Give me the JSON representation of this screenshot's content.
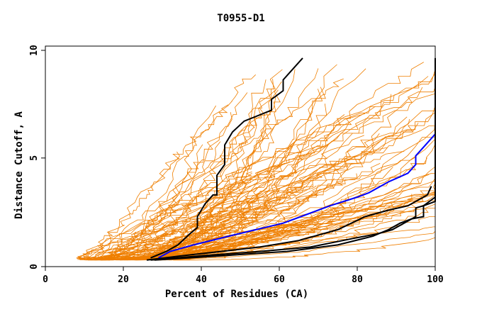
{
  "chart_data": {
    "type": "line",
    "title": "T0955-D1",
    "xlabel": "Percent of Residues (CA)",
    "ylabel": "Distance Cutoff, A",
    "xlim": [
      0,
      100
    ],
    "ylim": [
      0,
      10
    ],
    "x_ticks": [
      "0",
      "20",
      "40",
      "60",
      "80",
      "100"
    ],
    "y_ticks": [
      "0",
      "5",
      "10"
    ],
    "grid": false,
    "legend": "none",
    "colors": {
      "background_models": "#ef7f00",
      "highlight_black": "#000000",
      "highlight_blue": "#0000ff"
    },
    "background_model_count": 110,
    "series": [
      {
        "color": "#000000",
        "points": [
          [
            27,
            0.4
          ],
          [
            31,
            0.7
          ],
          [
            34,
            1.0
          ],
          [
            37,
            1.5
          ],
          [
            39,
            1.8
          ],
          [
            39,
            2.3
          ],
          [
            41,
            2.9
          ],
          [
            43,
            3.3
          ],
          [
            44,
            3.3
          ],
          [
            44,
            4.2
          ],
          [
            46,
            4.7
          ],
          [
            46,
            5.6
          ],
          [
            48,
            6.2
          ],
          [
            51,
            6.7
          ],
          [
            58,
            7.2
          ],
          [
            58,
            7.7
          ],
          [
            61,
            8.1
          ],
          [
            61,
            8.6
          ],
          [
            63,
            9.0
          ],
          [
            66,
            9.6
          ]
        ]
      },
      {
        "color": "#0000ff",
        "points": [
          [
            29,
            0.4
          ],
          [
            32,
            0.7
          ],
          [
            38,
            1.0
          ],
          [
            47,
            1.4
          ],
          [
            54,
            1.7
          ],
          [
            61,
            2.0
          ],
          [
            67,
            2.4
          ],
          [
            73,
            2.8
          ],
          [
            80,
            3.2
          ],
          [
            83,
            3.4
          ],
          [
            88,
            3.9
          ],
          [
            93,
            4.3
          ],
          [
            95,
            4.7
          ],
          [
            95,
            5.1
          ],
          [
            98,
            5.7
          ],
          [
            100,
            6.1
          ]
        ]
      },
      {
        "color": "#000000",
        "points": [
          [
            26,
            0.3
          ],
          [
            35,
            0.5
          ],
          [
            45,
            0.7
          ],
          [
            55,
            0.9
          ],
          [
            65,
            1.2
          ],
          [
            75,
            1.7
          ],
          [
            82,
            2.3
          ],
          [
            88,
            2.6
          ],
          [
            93,
            2.8
          ],
          [
            96,
            3.1
          ],
          [
            98,
            3.3
          ],
          [
            99,
            3.7
          ]
        ]
      },
      {
        "color": "#000000",
        "points": [
          [
            27,
            0.3
          ],
          [
            40,
            0.5
          ],
          [
            55,
            0.7
          ],
          [
            68,
            0.9
          ],
          [
            79,
            1.3
          ],
          [
            85,
            1.5
          ],
          [
            89,
            1.7
          ],
          [
            92,
            2.0
          ],
          [
            95,
            2.3
          ],
          [
            95,
            2.7
          ],
          [
            97,
            2.8
          ],
          [
            100,
            3.2
          ]
        ]
      },
      {
        "color": "#000000",
        "points": [
          [
            28,
            0.3
          ],
          [
            45,
            0.5
          ],
          [
            62,
            0.7
          ],
          [
            75,
            1.0
          ],
          [
            84,
            1.4
          ],
          [
            88,
            1.7
          ],
          [
            91,
            2.0
          ],
          [
            94,
            2.2
          ],
          [
            97,
            2.3
          ],
          [
            97,
            2.8
          ],
          [
            100,
            3.0
          ],
          [
            100,
            9.6
          ]
        ]
      }
    ]
  }
}
